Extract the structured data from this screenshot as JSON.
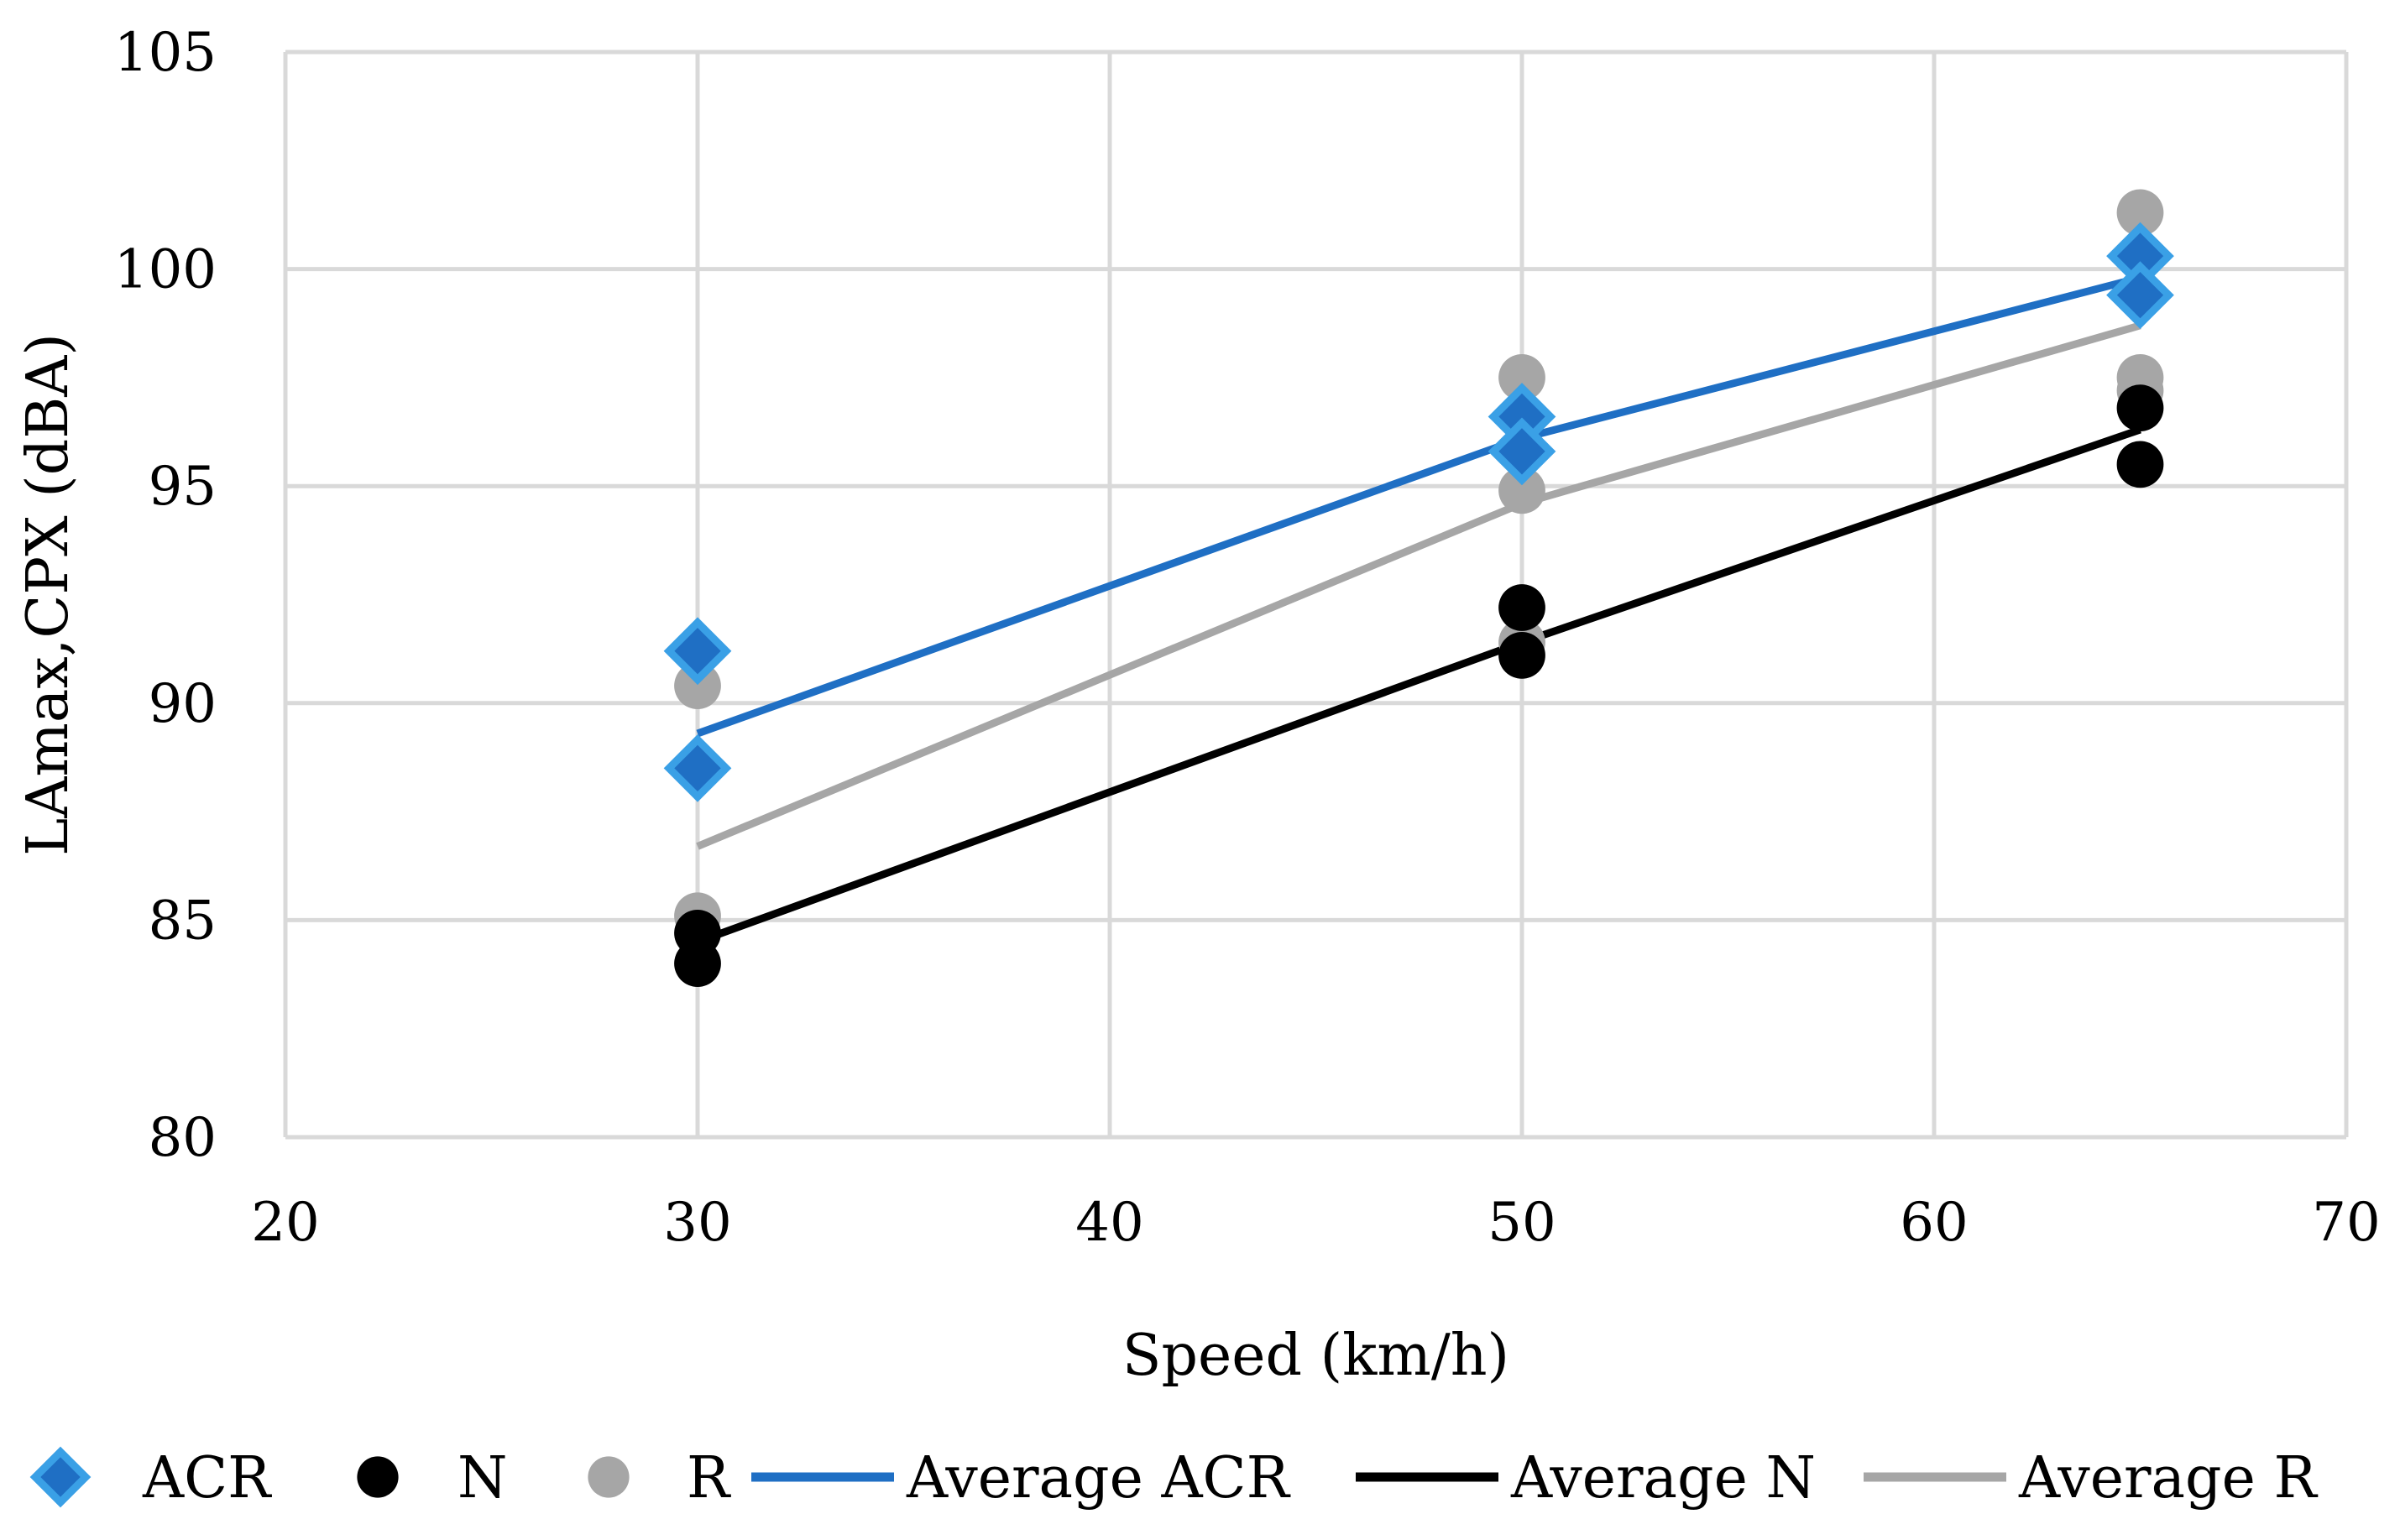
{
  "chart_data": {
    "type": "scatter",
    "title": "",
    "xlabel": "Speed (km/h)",
    "ylabel": "LAmax,CPX (dBA)",
    "xlim": [
      20,
      70
    ],
    "ylim": [
      80,
      105
    ],
    "xticks": [
      "20",
      "30",
      "40",
      "50",
      "60",
      "70"
    ],
    "yticks": [
      "80",
      "85",
      "90",
      "95",
      "100",
      "105"
    ],
    "grid": true,
    "legend_position": "bottom",
    "series": [
      {
        "name": "ACR",
        "kind": "points",
        "marker": "diamond",
        "color": "#2e86d6",
        "points": [
          [
            30,
            91.2
          ],
          [
            30,
            88.5
          ],
          [
            50,
            96.6
          ],
          [
            50,
            95.8
          ],
          [
            65,
            100.3
          ],
          [
            65,
            99.4
          ]
        ]
      },
      {
        "name": "N",
        "kind": "points",
        "marker": "circle",
        "color": "#000000",
        "points": [
          [
            30,
            84.0
          ],
          [
            30,
            84.7
          ],
          [
            50,
            92.2
          ],
          [
            50,
            91.1
          ],
          [
            65,
            96.8
          ],
          [
            65,
            95.5
          ]
        ]
      },
      {
        "name": "R",
        "kind": "points",
        "marker": "circle",
        "color": "#a6a6a6",
        "points": [
          [
            30,
            90.4
          ],
          [
            30,
            85.1
          ],
          [
            50,
            97.5
          ],
          [
            50,
            94.9
          ],
          [
            50,
            91.4
          ],
          [
            65,
            101.3
          ],
          [
            65,
            97.5
          ],
          [
            65,
            97.2
          ]
        ]
      },
      {
        "name": "Average ACR",
        "kind": "line",
        "color": "#1f6fc4",
        "points": [
          [
            30,
            89.3
          ],
          [
            50,
            96.1
          ],
          [
            65,
            99.8
          ]
        ]
      },
      {
        "name": "Average N",
        "kind": "line",
        "color": "#000000",
        "points": [
          [
            30,
            84.5
          ],
          [
            50,
            91.4
          ],
          [
            65,
            96.3
          ]
        ]
      },
      {
        "name": "Average R",
        "kind": "line",
        "color": "#a6a6a6",
        "points": [
          [
            30,
            86.7
          ],
          [
            50,
            94.6
          ],
          [
            65,
            98.7
          ]
        ]
      }
    ]
  }
}
